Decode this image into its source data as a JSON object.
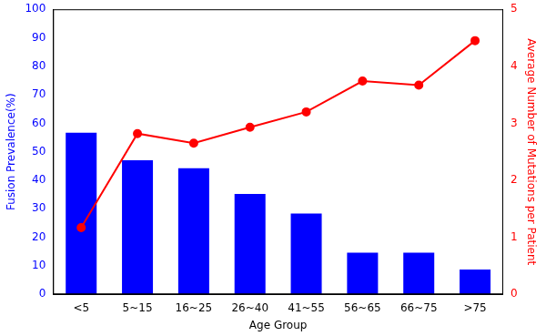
{
  "chart_data": {
    "type": "bar",
    "xlabel": "Age Group",
    "ylabel": "Fusion Prevalence(%)",
    "y2label": "Average Number of Mutations per Patient",
    "categories": [
      "<5",
      "5~15",
      "16~25",
      "26~40",
      "41~55",
      "56~65",
      "66~75",
      ">75"
    ],
    "series": [
      {
        "type": "bar",
        "color": "#0000ff",
        "values": [
          56.7,
          47.0,
          44.2,
          35.2,
          28.3,
          14.6,
          14.6,
          8.7
        ]
      },
      {
        "type": "line",
        "color": "#ff0000",
        "marker": "circle",
        "line_style": "solid",
        "axis": "y2",
        "values": [
          1.17,
          2.82,
          2.65,
          2.93,
          3.2,
          3.74,
          3.67,
          4.45
        ]
      }
    ],
    "ylim": [
      0,
      100
    ],
    "yticks": [
      0,
      10,
      20,
      30,
      40,
      50,
      60,
      70,
      80,
      90,
      100
    ],
    "y2lim": [
      0,
      5
    ],
    "y2ticks": [
      0,
      1,
      2,
      3,
      4,
      5
    ],
    "grid": false
  }
}
